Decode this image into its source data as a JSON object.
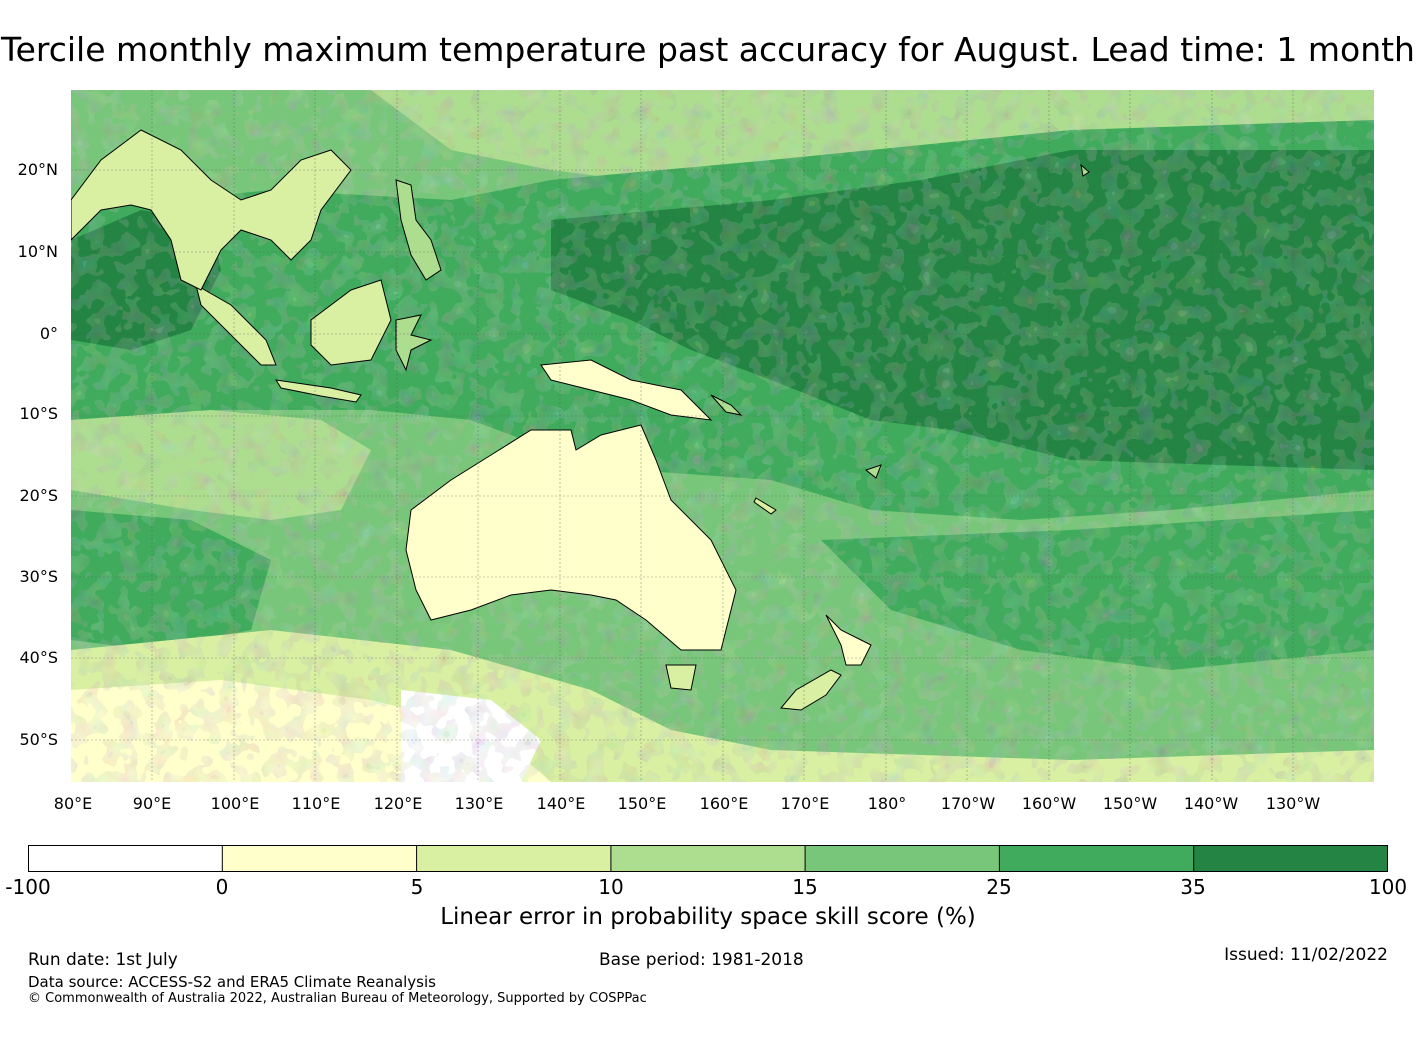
{
  "title": "Tercile monthly maximum temperature past accuracy for August. Lead time: 1 month",
  "map": {
    "lat_labels": [
      "20°N",
      "10°N",
      "0°",
      "10°S",
      "20°S",
      "30°S",
      "40°S",
      "50°S"
    ],
    "lon_labels": [
      "80°E",
      "90°E",
      "100°E",
      "110°E",
      "120°E",
      "130°E",
      "140°E",
      "150°E",
      "160°E",
      "170°E",
      "180°",
      "170°W",
      "160°W",
      "150°W",
      "140°W",
      "130°W"
    ],
    "skill_bands": [
      {
        "range": "-100 to 0",
        "color": "#ffffff"
      },
      {
        "range": "0 to 5",
        "color": "#ffffcc"
      },
      {
        "range": "5 to 10",
        "color": "#d9f0a3"
      },
      {
        "range": "10 to 15",
        "color": "#addd8e"
      },
      {
        "range": "15 to 25",
        "color": "#78c679"
      },
      {
        "range": "25 to 35",
        "color": "#41ab5d"
      },
      {
        "range": "35 to 100",
        "color": "#238443"
      }
    ]
  },
  "colorbar": {
    "ticks": [
      "-100",
      "0",
      "5",
      "10",
      "15",
      "25",
      "35",
      "100"
    ],
    "label": "Linear error in probability space skill score (%)"
  },
  "footer": {
    "run_date": "Run date: 1st July",
    "base_period": "Base period: 1981-2018",
    "issued": "Issued: 11/02/2022",
    "data_source": "Data source: ACCESS-S2 and ERA5 Climate Reanalysis",
    "copyright": "© Commonwealth of Australia 2022, Australian Bureau of Meteorology, Supported by COSPPac"
  }
}
